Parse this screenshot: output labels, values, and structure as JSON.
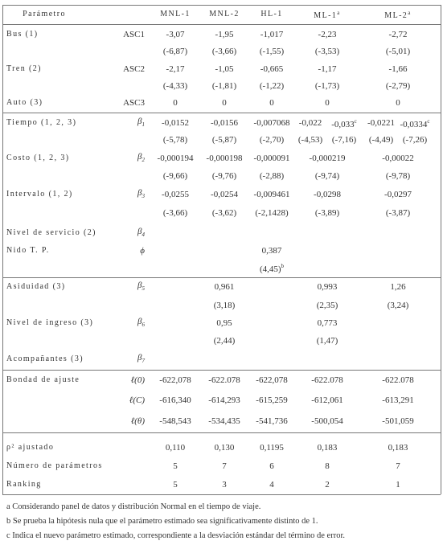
{
  "table": {
    "header": [
      "Parámetro",
      "MNL-1",
      "MNL-2",
      "HL-1",
      {
        "text": "ML-1",
        "sup": "a"
      },
      {
        "text": "ML-2",
        "sup": "a"
      }
    ],
    "rows": [
      {
        "label": "Bus (1)",
        "symbol": "ASC1",
        "values": [
          "-3,07",
          "-1,95",
          "-1,017",
          "-2,23",
          "-2,72"
        ]
      },
      {
        "values": [
          "(-6,87)",
          "(-3,66)",
          "(-1,55)",
          "(-3,53)",
          "(-5,01)"
        ]
      },
      {
        "label": "Tren (2)",
        "symbol": "ASC2",
        "values": [
          "-2,17",
          "-1,05",
          "-0,665",
          "-1,17",
          "-1,66"
        ]
      },
      {
        "values": [
          "(-4,33)",
          "(-1,81)",
          "(-1,22)",
          "(-1,73)",
          "(-2,79)"
        ]
      },
      {
        "label": "Auto (3)",
        "symbol": "ASC3",
        "values": [
          "0",
          "0",
          "0",
          "0",
          "0"
        ]
      },
      {
        "label": "Tiempo (1, 2, 3)",
        "symbol": {
          "text": "β",
          "sub": "1"
        },
        "values": [
          "-0,0152",
          "-0,0156",
          "-0,007068",
          [
            "-0,022",
            {
              "text": "-0,033",
              "sup": "c"
            }
          ],
          [
            "-0,0221",
            {
              "text": "-0,0334",
              "sup": "c"
            }
          ]
        ]
      },
      {
        "values": [
          "(-5,78)",
          "(-5,87)",
          "(-2,70)",
          [
            "(-4,53)",
            "(-7,16)"
          ],
          [
            "(-4,49)",
            "(-7,26)"
          ]
        ]
      },
      {
        "label": "Costo (1, 2, 3)",
        "symbol": {
          "text": "β",
          "sub": "2"
        },
        "values": [
          "-0,000194",
          "-0,000198",
          "-0,000091",
          "-0,000219",
          "-0,00022"
        ]
      },
      {
        "values": [
          "(-9,66)",
          "(-9,76)",
          "(-2,88)",
          "(-9,74)",
          "(-9,78)"
        ]
      },
      {
        "label": "Intervalo (1, 2)",
        "symbol": {
          "text": "β",
          "sub": "3"
        },
        "values": [
          "-0,0255",
          "-0,0254",
          "-0,009461",
          "-0,0298",
          "-0,0297"
        ]
      },
      {
        "values": [
          "(-3,66)",
          "(-3,62)",
          "(-2,1428)",
          "(-3,89)",
          "(-3,87)"
        ]
      },
      {
        "label": "Nivel de servicio (2)",
        "symbol": {
          "text": "β",
          "sub": "4"
        },
        "values": [
          null,
          null,
          null,
          null,
          null
        ]
      },
      {
        "label": "Nido T. P.",
        "symbol": "ϕ",
        "values": [
          null,
          null,
          "0,387",
          null,
          null
        ]
      },
      {
        "values": [
          null,
          null,
          {
            "text": "(4,45)",
            "sup": "b"
          },
          null,
          null
        ]
      },
      {
        "label": "Asiduidad (3)",
        "symbol": {
          "text": "β",
          "sub": "5"
        },
        "values": [
          null,
          "0,961",
          null,
          "0,993",
          "1,26"
        ]
      },
      {
        "values": [
          null,
          "(3,18)",
          null,
          "(2,35)",
          "(3,24)"
        ]
      },
      {
        "label": "Nivel de ingreso (3)",
        "symbol": {
          "text": "β",
          "sub": "6"
        },
        "values": [
          null,
          "0,95",
          null,
          "0,773",
          null
        ]
      },
      {
        "values": [
          null,
          "(2,44)",
          null,
          "(1,47)",
          null
        ]
      },
      {
        "label": "Acompañantes (3)",
        "symbol": {
          "text": "β",
          "sub": "7"
        },
        "values": [
          null,
          null,
          null,
          null,
          null
        ]
      },
      {
        "label": "Bondad de ajuste",
        "symbol": "ℓ(0)",
        "values": [
          "-622,078",
          "-622.078",
          "-622,078",
          "-622.078",
          "-622.078"
        ]
      },
      {
        "symbol": "ℓ(C)",
        "values": [
          "-616,340",
          "-614,293",
          "-615,259",
          "-612,061",
          "-613,291"
        ]
      },
      {
        "symbol": "ℓ(θ)",
        "values": [
          "-548,543",
          "-534,435",
          "-541,736",
          "-500,054",
          "-501,059"
        ]
      },
      {
        "label": "ρ² ajustado",
        "values": [
          "0,110",
          "0,130",
          "0,1195",
          "0,183",
          "0,183"
        ]
      },
      {
        "label": "Número de parámetros",
        "values": [
          "5",
          "7",
          "6",
          "8",
          "7"
        ]
      },
      {
        "label": "Ranking",
        "values": [
          "5",
          "3",
          "4",
          "2",
          "1"
        ]
      }
    ]
  },
  "notes": [
    "a Considerando panel de datos y distribución Normal en el tiempo de viaje.",
    "b Se prueba la hipótesis nula que el parámetro estimado sea significativamente distinto de 1.",
    "c Indica el nuevo parámetro estimado, correspondiente a la desviación estándar del término de error."
  ]
}
